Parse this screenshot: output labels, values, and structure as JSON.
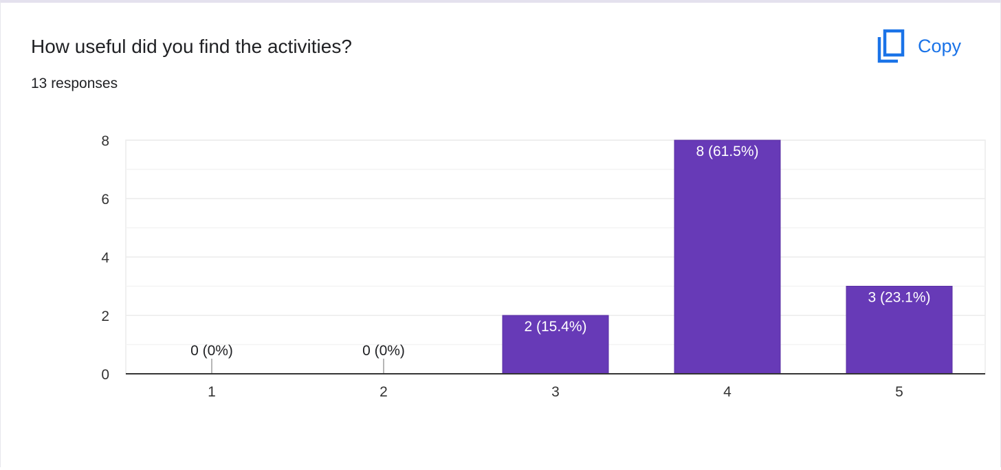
{
  "question": {
    "title": "How useful did you find the activities?",
    "responses": "13 responses"
  },
  "copy_button": {
    "label": "Copy",
    "icon": "copy-icon"
  },
  "colors": {
    "bar": "#673ab7",
    "accent": "#1a73e8",
    "grid": "#ebebeb",
    "axis": "#333333",
    "text": "#202124"
  },
  "chart_data": {
    "type": "bar",
    "title": "",
    "xlabel": "",
    "ylabel": "",
    "categories": [
      "1",
      "2",
      "3",
      "4",
      "5"
    ],
    "values": [
      0,
      0,
      2,
      8,
      3
    ],
    "data_labels": [
      "0 (0%)",
      "0 (0%)",
      "2 (15.4%)",
      "8 (61.5%)",
      "3 (23.1%)"
    ],
    "ylim": [
      0,
      8
    ],
    "yticks": [
      0,
      2,
      4,
      6,
      8
    ],
    "minor_gridlines": [
      1,
      3,
      5,
      7
    ],
    "grid": true,
    "legend": "none"
  }
}
